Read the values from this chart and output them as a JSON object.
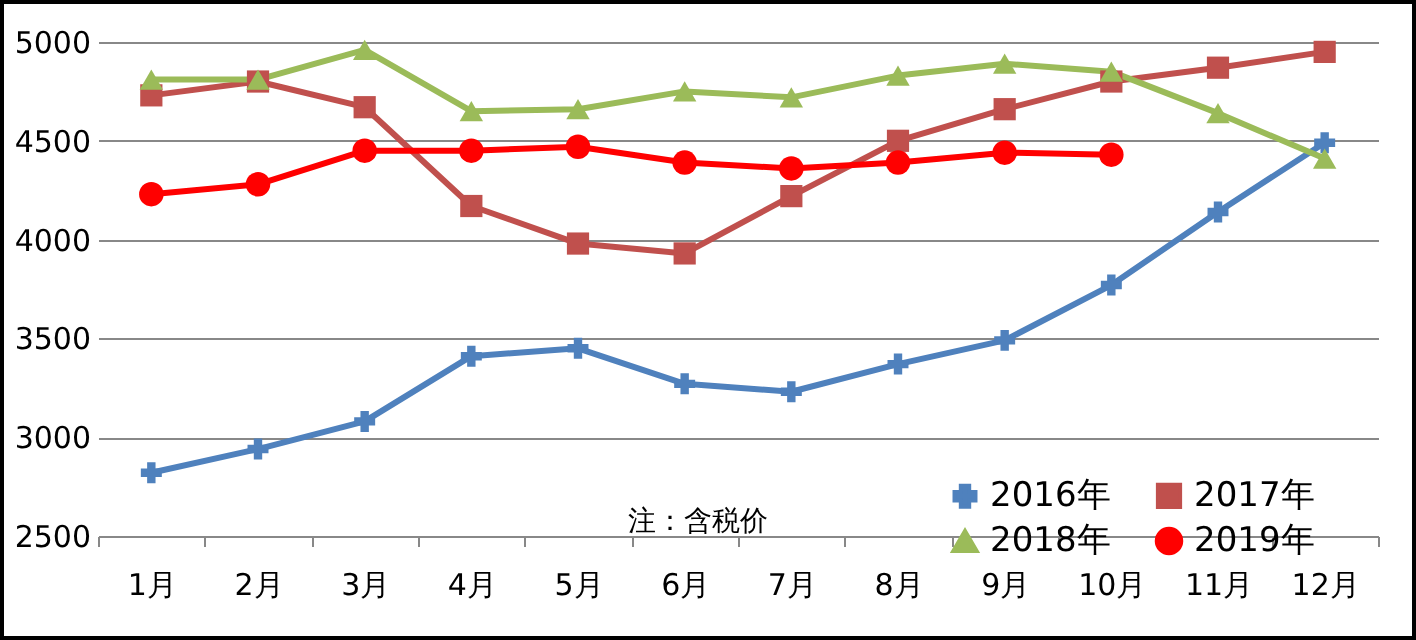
{
  "chart_data": {
    "type": "line",
    "categories": [
      "1月",
      "2月",
      "3月",
      "4月",
      "5月",
      "6月",
      "7月",
      "8月",
      "9月",
      "10月",
      "11月",
      "12月"
    ],
    "ylim": [
      2500,
      5000
    ],
    "yticks": [
      2500,
      3000,
      3500,
      4000,
      4500,
      5000
    ],
    "grid": "y",
    "legend": "bottom right",
    "annotations": [
      "注：含税价"
    ],
    "series": [
      {
        "name": "2016年",
        "color": "#4f81bd",
        "marker": "cross",
        "values": [
          2820,
          2940,
          3080,
          3410,
          3450,
          3270,
          3230,
          3370,
          3490,
          3770,
          4140,
          4490
        ]
      },
      {
        "name": "2017年",
        "color": "#c0504d",
        "marker": "square",
        "values": [
          4730,
          4800,
          4670,
          4170,
          3980,
          3930,
          4220,
          4500,
          4660,
          4800,
          4870,
          4950
        ]
      },
      {
        "name": "2018年",
        "color": "#9bbb59",
        "marker": "triangle",
        "values": [
          4810,
          4810,
          4960,
          4650,
          4660,
          4750,
          4720,
          4830,
          4890,
          4850,
          4640,
          4410
        ]
      },
      {
        "name": "2019年",
        "color": "#ff0000",
        "marker": "circle",
        "values": [
          4230,
          4280,
          4450,
          4450,
          4470,
          4390,
          4360,
          4390,
          4440,
          4430,
          null,
          null
        ]
      }
    ]
  }
}
